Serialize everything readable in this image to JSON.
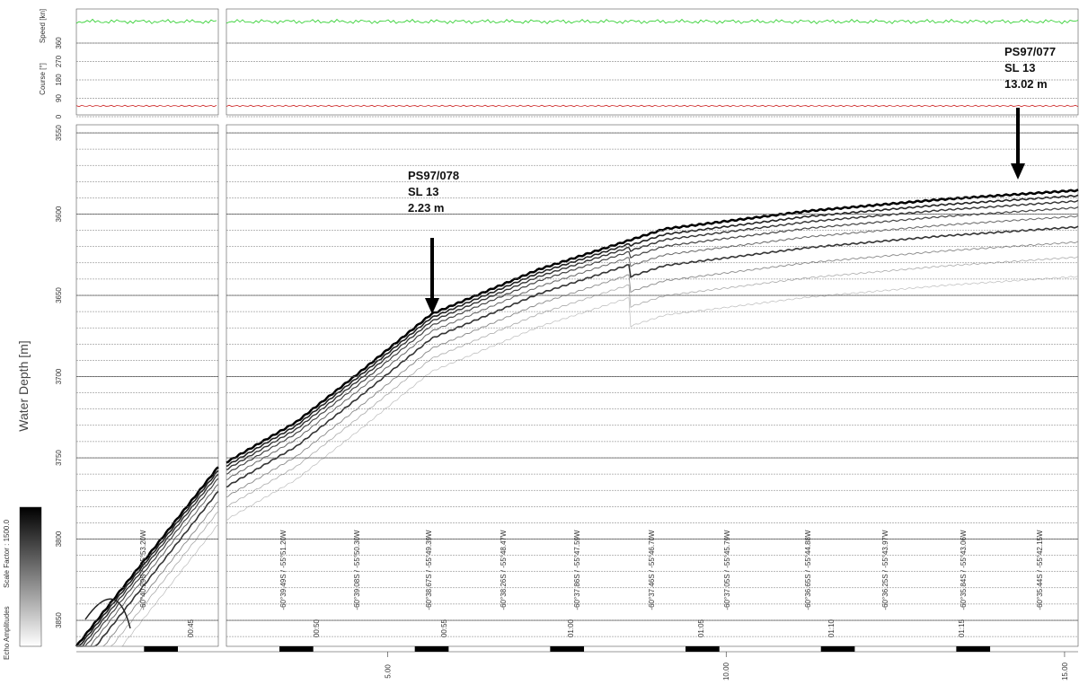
{
  "speed_panel": {
    "axis_label": "Speed [kn]"
  },
  "course_panel": {
    "axis_label": "Course [°]",
    "ylim": [
      0,
      360
    ],
    "yticks": [
      0,
      90,
      180,
      270,
      360
    ]
  },
  "depth_panel": {
    "axis_label": "Water Depth [m]",
    "ylim": [
      3545,
      3866
    ],
    "yticks": [
      3550,
      3600,
      3650,
      3700,
      3750,
      3800,
      3850
    ]
  },
  "colorbar": {
    "label": "Echo Amplitudes",
    "scale": "Scale Factor : 1500.0"
  },
  "annotations": [
    {
      "lines": [
        "PS97/078",
        "SL 13",
        "2.23 m"
      ]
    },
    {
      "lines": [
        "PS97/077",
        "SL 13",
        "13.02 m"
      ]
    }
  ],
  "positions": [
    "-60°40.29S / -55°53.20W",
    "-60°39.49S / -55°51.20W",
    "-60°39.08S / -55°50.30W",
    "-60°38.67S / -55°49.39W",
    "-60°38.26S / -55°48.47W",
    "-60°37.86S / -55°47.59W",
    "-60°37.46S / -55°46.70W",
    "-60°37.05S / -55°45.79W",
    "-60°36.65S / -55°44.88W",
    "-60°36.25S / -55°43.97W",
    "-60°35.84S / -55°43.06W",
    "-60°35.44S / -55°42.15W"
  ],
  "times": [
    "00:45",
    "00:50",
    "00:55",
    "01:00",
    "01:05",
    "01:10",
    "01:15"
  ],
  "distance_axis": {
    "xlim": [
      0.4,
      15.2
    ],
    "xticks": [
      {
        "value": 5,
        "label": "5.00"
      },
      {
        "value": 10,
        "label": "10.00"
      },
      {
        "value": 15,
        "label": "15.00"
      }
    ]
  }
}
